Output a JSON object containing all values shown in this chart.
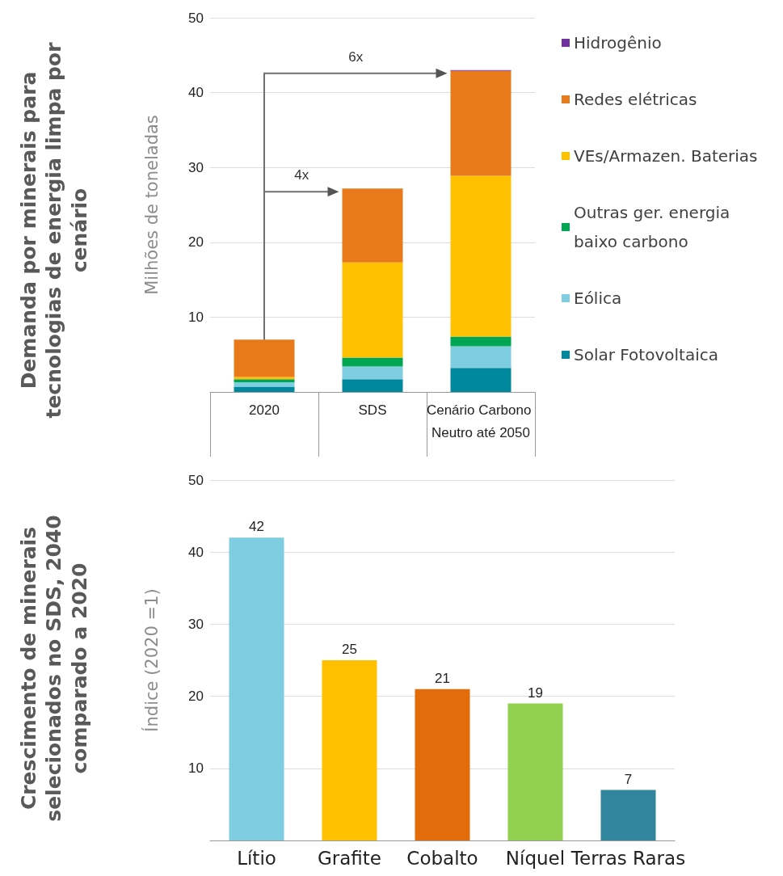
{
  "chart_data": [
    {
      "type": "bar",
      "title": "Demanda por minerais para tecnologias de energia limpa por cenário",
      "ylabel": "Milhões de toneladas",
      "categories": [
        "2020",
        "SDS",
        "Cenário Carbono Neutro até 2050"
      ],
      "stacked": true,
      "series": [
        {
          "name": "Solar Fotovoltaica",
          "color": "#00889e",
          "values": [
            0.7,
            1.7,
            3.2
          ]
        },
        {
          "name": "Eólica",
          "color": "#7fcde0",
          "values": [
            0.6,
            1.7,
            2.9
          ]
        },
        {
          "name": "Outras ger. energia baixo carbono",
          "color": "#00a651",
          "values": [
            0.4,
            1.2,
            1.3
          ]
        },
        {
          "name": "VEs/Armazen. Baterias",
          "color": "#ffc000",
          "values": [
            0.3,
            12.7,
            21.5
          ]
        },
        {
          "name": "Redes elétricas",
          "color": "#e87a1c",
          "values": [
            5.0,
            9.9,
            14.0
          ]
        },
        {
          "name": "Hidrogênio",
          "color": "#7030a0",
          "values": [
            0,
            0,
            0.1
          ]
        }
      ],
      "ylim": [
        0,
        50
      ],
      "yticks": [
        10,
        20,
        30,
        40,
        50
      ],
      "grid": "y",
      "legend": "right",
      "annotations": [
        "4x",
        "6x"
      ]
    },
    {
      "type": "bar",
      "title": "Crescimento de minerais selecionados no SDS, 2040 comparado a 2020",
      "ylabel": "Índice (2020 =1)",
      "categories": [
        "Lítio",
        "Grafite",
        "Cobalto",
        "Níquel",
        "Terras Raras"
      ],
      "values": [
        42,
        25,
        21,
        19,
        7
      ],
      "colors": [
        "#7fcde0",
        "#ffc000",
        "#e36c0a",
        "#92d050",
        "#31859c"
      ],
      "ylim": [
        0,
        50
      ],
      "yticks": [
        10,
        20,
        30,
        40,
        50
      ],
      "grid": "y",
      "data_labels": true
    }
  ]
}
